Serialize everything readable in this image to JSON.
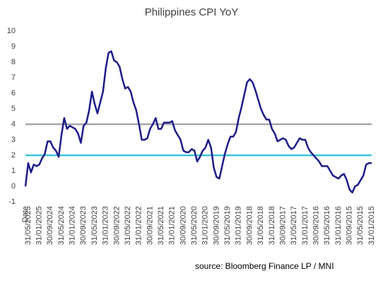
{
  "chart_data": {
    "type": "line",
    "title": "Philippines CPI YoY",
    "categories": [
      "Date",
      "31/05/2025",
      null,
      null,
      null,
      "31/01/2025",
      null,
      null,
      null,
      "30/09/2024",
      null,
      null,
      null,
      "31/05/2024",
      null,
      null,
      null,
      "31/01/2024",
      null,
      null,
      null,
      "30/09/2023",
      null,
      null,
      null,
      "31/05/2023",
      null,
      null,
      null,
      "31/01/2023",
      null,
      null,
      null,
      "30/09/2022",
      null,
      null,
      null,
      "31/05/2022",
      null,
      null,
      null,
      "31/01/2022",
      null,
      null,
      null,
      "30/09/2021",
      null,
      null,
      null,
      "31/05/2021",
      null,
      null,
      null,
      "31/01/2021",
      null,
      null,
      null,
      "30/09/2020",
      null,
      null,
      null,
      "31/05/2020",
      null,
      null,
      null,
      "31/01/2020",
      null,
      null,
      null,
      "30/09/2019",
      null,
      null,
      null,
      "31/05/2019",
      null,
      null,
      null,
      "31/01/2019",
      null,
      null,
      null,
      "30/09/2018",
      null,
      null,
      null,
      "31/05/2018",
      null,
      null,
      null,
      "31/01/2018",
      null,
      null,
      null,
      "30/09/2017",
      null,
      null,
      null,
      "31/05/2017",
      null,
      null,
      null,
      "31/01/2017",
      null,
      null,
      null,
      "30/09/2016",
      null,
      null,
      null,
      "31/05/2016",
      null,
      null,
      null,
      "31/01/2016",
      null,
      null,
      null,
      "30/09/2015",
      null,
      null,
      null,
      "31/05/2015",
      null,
      null,
      null,
      "31/01/2015"
    ],
    "series": [
      {
        "color": "#1c1c8a",
        "values": [
          0,
          1.5,
          0.9,
          1.4,
          1.3,
          1.4,
          1.8,
          2.1,
          2.9,
          2.9,
          2.5,
          2.3,
          1.9,
          3.3,
          4.4,
          3.7,
          3.9,
          3.8,
          3.7,
          3.4,
          2.8,
          3.9,
          4.1,
          4.9,
          6.1,
          5.3,
          4.7,
          5.4,
          6.1,
          7.6,
          8.6,
          8.7,
          8.1,
          8.0,
          7.7,
          6.9,
          6.3,
          6.4,
          6.1,
          5.4,
          4.9,
          4.0,
          3.0,
          3.0,
          3.1,
          3.7,
          4.0,
          4.4,
          3.7,
          3.7,
          4.1,
          4.1,
          4.1,
          4.2,
          3.6,
          3.3,
          3.0,
          2.3,
          2.2,
          2.2,
          2.4,
          2.3,
          1.6,
          1.9,
          2.3,
          2.5,
          3.0,
          2.5,
          1.2,
          0.6,
          0.5,
          1.3,
          2.1,
          2.7,
          3.2,
          3.2,
          3.5,
          4.4,
          5.1,
          5.9,
          6.7,
          6.9,
          6.7,
          6.2,
          5.6,
          5.0,
          4.6,
          4.3,
          4.3,
          3.7,
          3.4,
          2.9,
          3.0,
          3.1,
          3.0,
          2.6,
          2.4,
          2.5,
          2.8,
          3.1,
          3.0,
          3.0,
          2.5,
          2.2,
          2.0,
          1.8,
          1.6,
          1.3,
          1.3,
          1.3,
          1.0,
          0.7,
          0.6,
          0.5,
          0.7,
          0.8,
          0.4,
          -0.2,
          -0.4,
          0.0,
          0.1,
          0.4,
          0.7,
          1.4,
          1.5,
          1.5
        ]
      }
    ],
    "reference_lines": [
      {
        "value": 4,
        "color": "#a6a6a6"
      },
      {
        "value": 2,
        "color": "#3cc3dc"
      }
    ],
    "ylim": [
      -1,
      10
    ],
    "yticks": [
      -1,
      0,
      1,
      2,
      3,
      4,
      5,
      6,
      7,
      8,
      9,
      10
    ],
    "grid": false,
    "source": "source: Bloomberg Finance LP /  MNI"
  }
}
